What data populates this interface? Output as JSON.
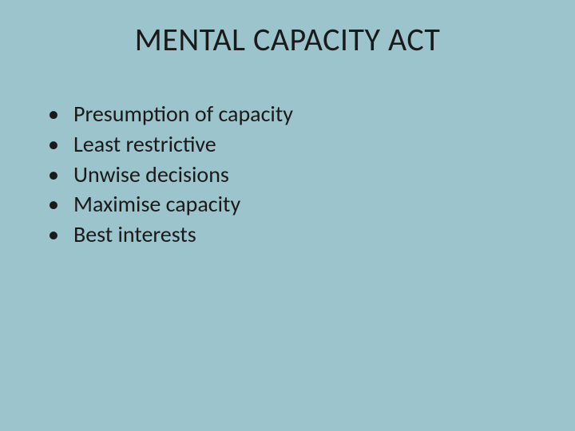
{
  "slide": {
    "title": "MENTAL CAPACITY ACT",
    "bullets": [
      "Presumption of capacity",
      "Least restrictive",
      "Unwise decisions",
      "Maximise capacity",
      "Best interests"
    ],
    "styling": {
      "background_color": "#9cc4cc",
      "title_fontsize": 40,
      "title_color": "#1a1a1a",
      "bullet_fontsize": 28,
      "bullet_color": "#1a1a1a",
      "font_family": "Calibri"
    }
  }
}
